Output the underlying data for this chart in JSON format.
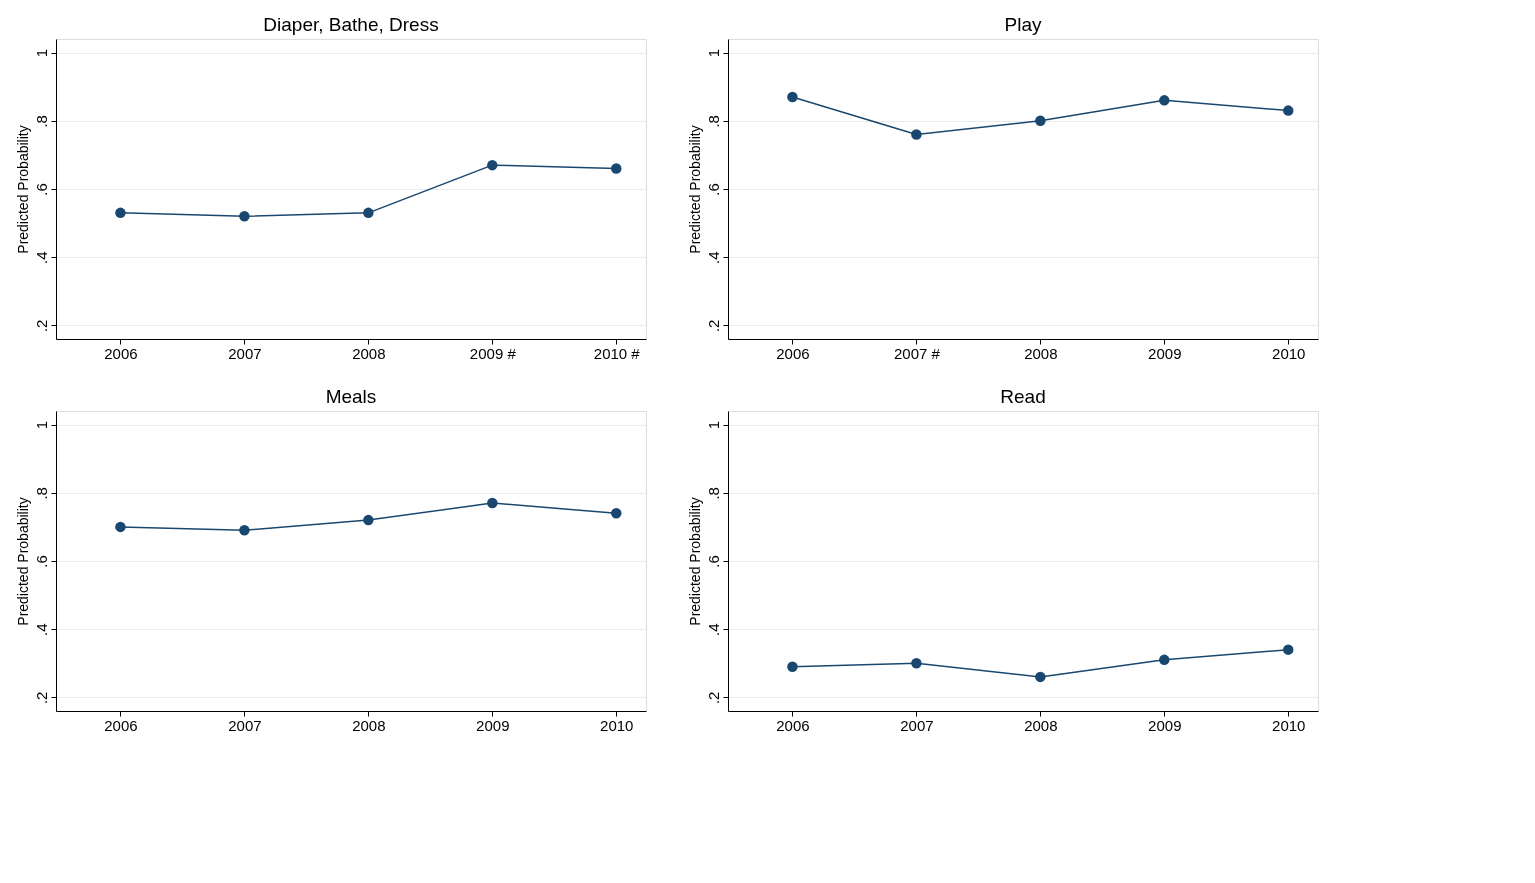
{
  "chart_data": [
    {
      "type": "line",
      "title": "Diaper, Bathe, Dress",
      "ylabel": "Predicted Probability",
      "categories": [
        "2006",
        "2007",
        "2008",
        "2009 #",
        "2010 #"
      ],
      "series": [
        {
          "color": "#1a476f",
          "values": [
            0.53,
            0.52,
            0.53,
            0.67,
            0.66
          ]
        }
      ],
      "ylim": [
        0.16,
        1.04
      ],
      "yticks": [
        {
          "value": 0.2,
          "label": ".2"
        },
        {
          "value": 0.4,
          "label": ".4"
        },
        {
          "value": 0.6,
          "label": ".6"
        },
        {
          "value": 0.8,
          "label": ".8"
        },
        1
      ],
      "grid": "y",
      "marker": "circle",
      "line_style": "solid"
    },
    {
      "type": "line",
      "title": "Play",
      "ylabel": "Predicted Probability",
      "categories": [
        "2006",
        "2007 #",
        "2008",
        "2009",
        "2010"
      ],
      "series": [
        {
          "color": "#1a476f",
          "values": [
            0.87,
            0.76,
            0.8,
            0.86,
            0.83
          ]
        }
      ],
      "ylim": [
        0.16,
        1.04
      ],
      "yticks": [
        {
          "value": 0.2,
          "label": ".2"
        },
        {
          "value": 0.4,
          "label": ".4"
        },
        {
          "value": 0.6,
          "label": ".6"
        },
        {
          "value": 0.8,
          "label": ".8"
        },
        1
      ],
      "grid": "y",
      "marker": "circle",
      "line_style": "solid"
    },
    {
      "type": "line",
      "title": "Meals",
      "ylabel": "Predicted Probability",
      "categories": [
        "2006",
        "2007",
        "2008",
        "2009",
        "2010"
      ],
      "series": [
        {
          "color": "#1a476f",
          "values": [
            0.7,
            0.69,
            0.72,
            0.77,
            0.74
          ]
        }
      ],
      "ylim": [
        0.16,
        1.04
      ],
      "yticks": [
        {
          "value": 0.2,
          "label": ".2"
        },
        {
          "value": 0.4,
          "label": ".4"
        },
        {
          "value": 0.6,
          "label": ".6"
        },
        {
          "value": 0.8,
          "label": ".8"
        },
        1
      ],
      "grid": "y",
      "marker": "circle",
      "line_style": "solid"
    },
    {
      "type": "line",
      "title": "Read",
      "ylabel": "Predicted Probability",
      "categories": [
        "2006",
        "2007",
        "2008",
        "2009",
        "2010"
      ],
      "series": [
        {
          "color": "#1a476f",
          "values": [
            0.29,
            0.3,
            0.26,
            0.31,
            0.34
          ]
        }
      ],
      "ylim": [
        0.16,
        1.04
      ],
      "yticks": [
        {
          "value": 0.2,
          "label": ".2"
        },
        {
          "value": 0.4,
          "label": ".4"
        },
        {
          "value": 0.6,
          "label": ".6"
        },
        {
          "value": 0.8,
          "label": ".8"
        },
        1
      ],
      "grid": "y",
      "marker": "circle",
      "line_style": "solid"
    }
  ]
}
